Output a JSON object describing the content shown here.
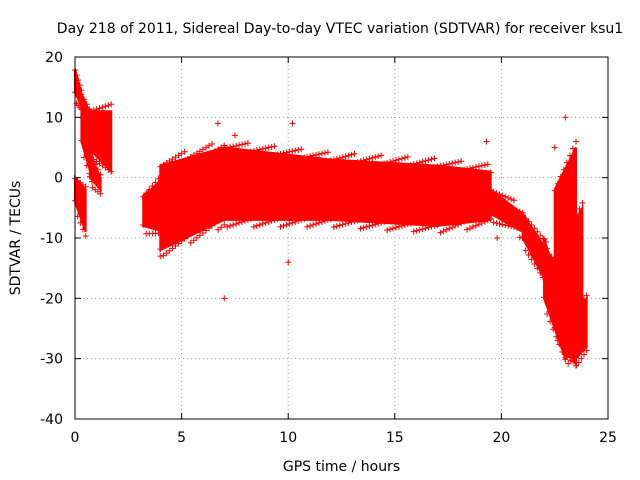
{
  "chart_data": {
    "type": "scatter",
    "title": "Day 218 of 2011, Sidereal Day-to-day VTEC variation (SDTVAR) for receiver ksu1",
    "xlabel": "GPS time / hours",
    "ylabel": "SDTVAR / TECUs",
    "xlim": [
      0,
      25
    ],
    "ylim": [
      -40,
      20
    ],
    "xticks": [
      0,
      5,
      10,
      15,
      20,
      25
    ],
    "yticks": [
      -40,
      -30,
      -20,
      -10,
      0,
      10,
      20
    ],
    "grid": true,
    "marker": "+",
    "series_color": "#ff0000",
    "series": [
      {
        "name": "SDTVAR",
        "bands": [
          {
            "x": [
              0.0,
              0.3
            ],
            "y_top": [
              18,
              14
            ],
            "y_bottom": [
              14,
              12
            ]
          },
          {
            "x": [
              0.0,
              0.5
            ],
            "y_top": [
              0,
              -2
            ],
            "y_bottom": [
              -4,
              -9
            ]
          },
          {
            "x": [
              0.3,
              0.8
            ],
            "y_top": [
              14,
              10
            ],
            "y_bottom": [
              6,
              0
            ]
          },
          {
            "x": [
              0.6,
              1.7
            ],
            "y_top": [
              11,
              11
            ],
            "y_bottom": [
              5,
              1
            ]
          },
          {
            "x": [
              0.7,
              1.2
            ],
            "y_top": [
              4,
              0
            ],
            "y_bottom": [
              0,
              -2
            ]
          },
          {
            "x": [
              3.2,
              4.2
            ],
            "y_top": [
              -3,
              0
            ],
            "y_bottom": [
              -8,
              -9
            ]
          },
          {
            "x": [
              4.0,
              7.0
            ],
            "y_top": [
              2,
              5
            ],
            "y_bottom": [
              -12,
              -7
            ]
          },
          {
            "x": [
              7.0,
              12.0
            ],
            "y_top": [
              5,
              3
            ],
            "y_bottom": [
              -7,
              -7
            ]
          },
          {
            "x": [
              12.0,
              17.0
            ],
            "y_top": [
              3,
              2
            ],
            "y_bottom": [
              -7,
              -8
            ]
          },
          {
            "x": [
              17.0,
              19.5
            ],
            "y_top": [
              2,
              1
            ],
            "y_bottom": [
              -8,
              -7
            ]
          },
          {
            "x": [
              19.5,
              21.0
            ],
            "y_top": [
              -2,
              -6
            ],
            "y_bottom": [
              -6,
              -9
            ]
          },
          {
            "x": [
              21.0,
              22.5
            ],
            "y_top": [
              -6,
              -14
            ],
            "y_bottom": [
              -10,
              -20
            ]
          },
          {
            "x": [
              22.0,
              23.0
            ],
            "y_top": [
              -10,
              -22
            ],
            "y_bottom": [
              -20,
              -30
            ]
          },
          {
            "x": [
              22.5,
              23.5
            ],
            "y_top": [
              -2,
              5
            ],
            "y_bottom": [
              -25,
              -31
            ]
          },
          {
            "x": [
              23.0,
              23.8
            ],
            "y_top": [
              -10,
              -5
            ],
            "y_bottom": [
              -30,
              -28
            ]
          },
          {
            "x": [
              23.5,
              24.0
            ],
            "y_top": [
              -22,
              -20
            ],
            "y_bottom": [
              -30,
              -28
            ]
          }
        ],
        "outliers": [
          {
            "x": 7.0,
            "y": -20
          },
          {
            "x": 23.0,
            "y": 10
          },
          {
            "x": 22.5,
            "y": 5
          },
          {
            "x": 7.5,
            "y": 7
          },
          {
            "x": 6.7,
            "y": 9
          },
          {
            "x": 10.2,
            "y": 9
          },
          {
            "x": 10.0,
            "y": -14
          },
          {
            "x": 19.3,
            "y": 6
          },
          {
            "x": 19.8,
            "y": -10
          },
          {
            "x": 4.0,
            "y": -13
          },
          {
            "x": 1.0,
            "y": 11
          }
        ]
      }
    ]
  }
}
